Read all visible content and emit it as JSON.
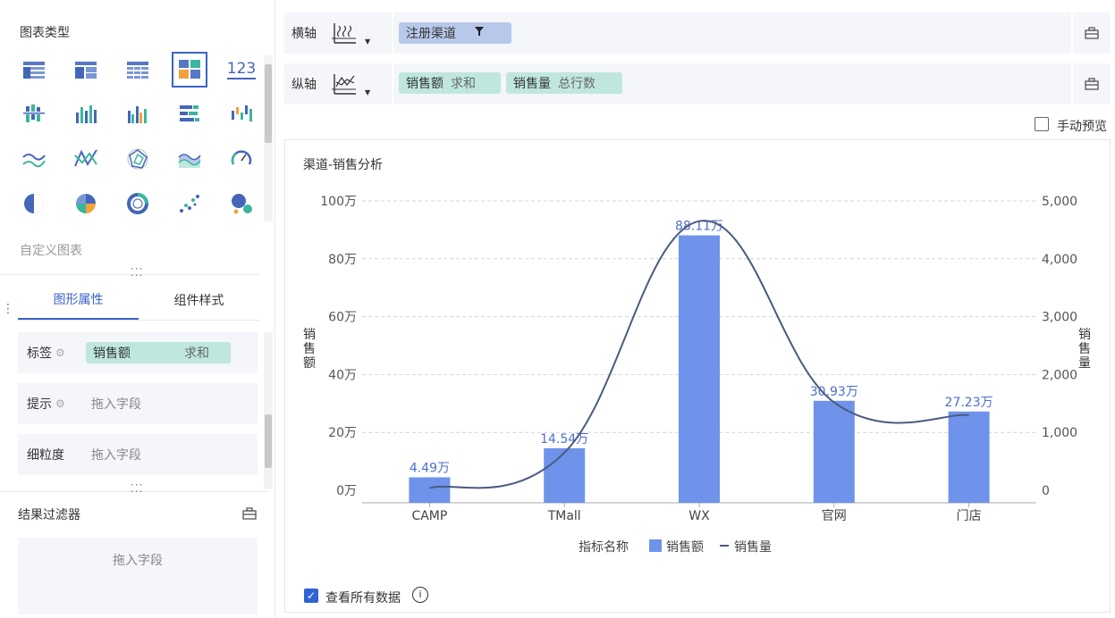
{
  "left": {
    "chart_type_title": "图表类型",
    "custom_chart_label": "自定义图表",
    "tabs": [
      {
        "label": "图形属性"
      },
      {
        "label": "组件样式"
      }
    ],
    "props": {
      "label_row": {
        "name": "标签",
        "field": "销售额",
        "agg": "求和"
      },
      "tooltip_row": {
        "name": "提示",
        "placeholder": "拖入字段"
      },
      "granularity_row": {
        "name": "细粒度",
        "placeholder": "拖入字段"
      }
    },
    "result_filter": {
      "title": "结果过滤器",
      "placeholder": "拖入字段"
    },
    "gallery_text_icon": "123"
  },
  "x_axis": {
    "label": "横轴",
    "pill": "注册渠道"
  },
  "y_axis": {
    "label": "纵轴",
    "pills": [
      {
        "field": "销售额",
        "agg": "求和"
      },
      {
        "field": "销售量",
        "agg": "总行数"
      }
    ]
  },
  "manual_preview": {
    "label": "手动预览",
    "checked": false
  },
  "view_all": {
    "label": "查看所有数据",
    "checked": true
  },
  "colors": {
    "accent": "#3a62c9",
    "bar": "#6f93ea",
    "line": "#4a5a80",
    "pill_green": "#bfe7e0",
    "pill_blue": "#b7c8ea"
  },
  "chart_data": {
    "type": "bar",
    "title": "渠道-销售分析",
    "categories": [
      "CAMP",
      "TMall",
      "WX",
      "官网",
      "门店"
    ],
    "series": [
      {
        "name": "销售额",
        "type": "bar",
        "axis": "left",
        "values": [
          44900,
          145400,
          881100,
          309300,
          272300
        ],
        "labels": [
          "4.49万",
          "14.54万",
          "88.11万",
          "30.93万",
          "27.23万"
        ]
      },
      {
        "name": "销售量",
        "type": "line",
        "axis": "right",
        "values": [
          40,
          650,
          4650,
          1520,
          1300
        ]
      }
    ],
    "ylabel_left": "销售额",
    "ylabel_right": "销售量",
    "ylim_left": [
      0,
      1000000
    ],
    "ylim_right": [
      0,
      5000
    ],
    "left_ticks": [
      {
        "v": 0,
        "t": "0万"
      },
      {
        "v": 200000,
        "t": "20万"
      },
      {
        "v": 400000,
        "t": "40万"
      },
      {
        "v": 600000,
        "t": "60万"
      },
      {
        "v": 800000,
        "t": "80万"
      },
      {
        "v": 1000000,
        "t": "100万"
      }
    ],
    "right_ticks": [
      {
        "v": 0,
        "t": "0"
      },
      {
        "v": 1000,
        "t": "1,000"
      },
      {
        "v": 2000,
        "t": "2,000"
      },
      {
        "v": 3000,
        "t": "3,000"
      },
      {
        "v": 4000,
        "t": "4,000"
      },
      {
        "v": 5000,
        "t": "5,000"
      }
    ],
    "legend_title": "指标名称",
    "legend_position": "bottom",
    "grid": true
  }
}
